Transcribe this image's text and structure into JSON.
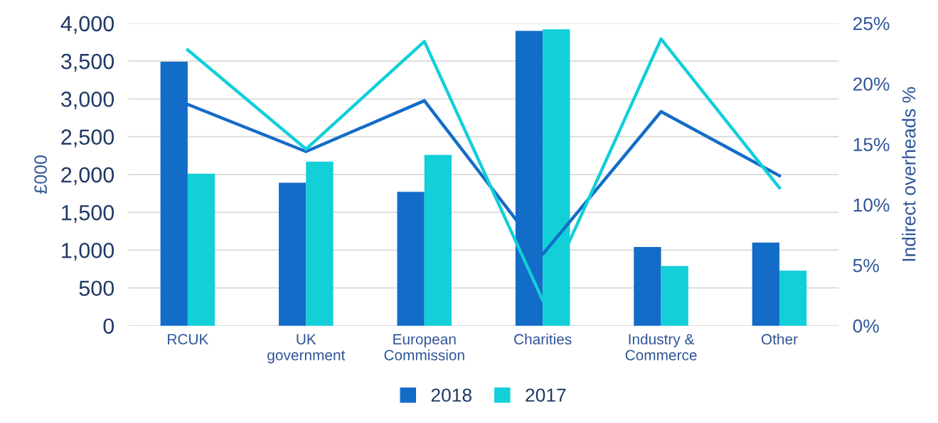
{
  "chart_data": {
    "type": "bar",
    "categories": [
      "RCUK",
      "UK\ngovernment",
      "European\nCommission",
      "Charities",
      "Industry &\nCommerce",
      "Other"
    ],
    "series": [
      {
        "name": "2018",
        "color": "#136cc8",
        "values": [
          3490,
          1890,
          1770,
          3900,
          1040,
          1100
        ]
      },
      {
        "name": "2017",
        "color": "#12cfd8",
        "values": [
          2010,
          2170,
          2260,
          3920,
          790,
          730
        ]
      },
      {
        "type": "line",
        "axis": "y2",
        "color": "#136cc8",
        "values": [
          18.3,
          14.4,
          18.6,
          5.9,
          17.7,
          12.4
        ]
      },
      {
        "type": "line",
        "axis": "y2",
        "color": "#12cfd8",
        "values": [
          22.8,
          14.6,
          23.5,
          2.1,
          23.7,
          11.4
        ]
      }
    ],
    "ylabel": "£000",
    "y2label": "Indirect overheads %",
    "ylim": [
      0,
      4000
    ],
    "yticks": [
      0,
      500,
      {
        "value": 1000,
        "label": "1,000"
      },
      {
        "value": 1500,
        "label": "1,500"
      },
      {
        "value": 2000,
        "label": "2,000"
      },
      {
        "value": 2500,
        "label": "2,500"
      },
      {
        "value": 3000,
        "label": "3,000"
      },
      {
        "value": 3500,
        "label": "3,500"
      },
      {
        "value": 4000,
        "label": "4,000"
      }
    ],
    "y2lim": [
      0,
      25
    ],
    "y2ticks": [
      {
        "value": 0,
        "label": "0%"
      },
      {
        "value": 5,
        "label": "5%"
      },
      {
        "value": 10,
        "label": "10%"
      },
      {
        "value": 15,
        "label": "15%"
      },
      {
        "value": 20,
        "label": "20%"
      },
      {
        "value": 25,
        "label": "25%"
      }
    ],
    "grid": "y",
    "legend": "bottom"
  }
}
